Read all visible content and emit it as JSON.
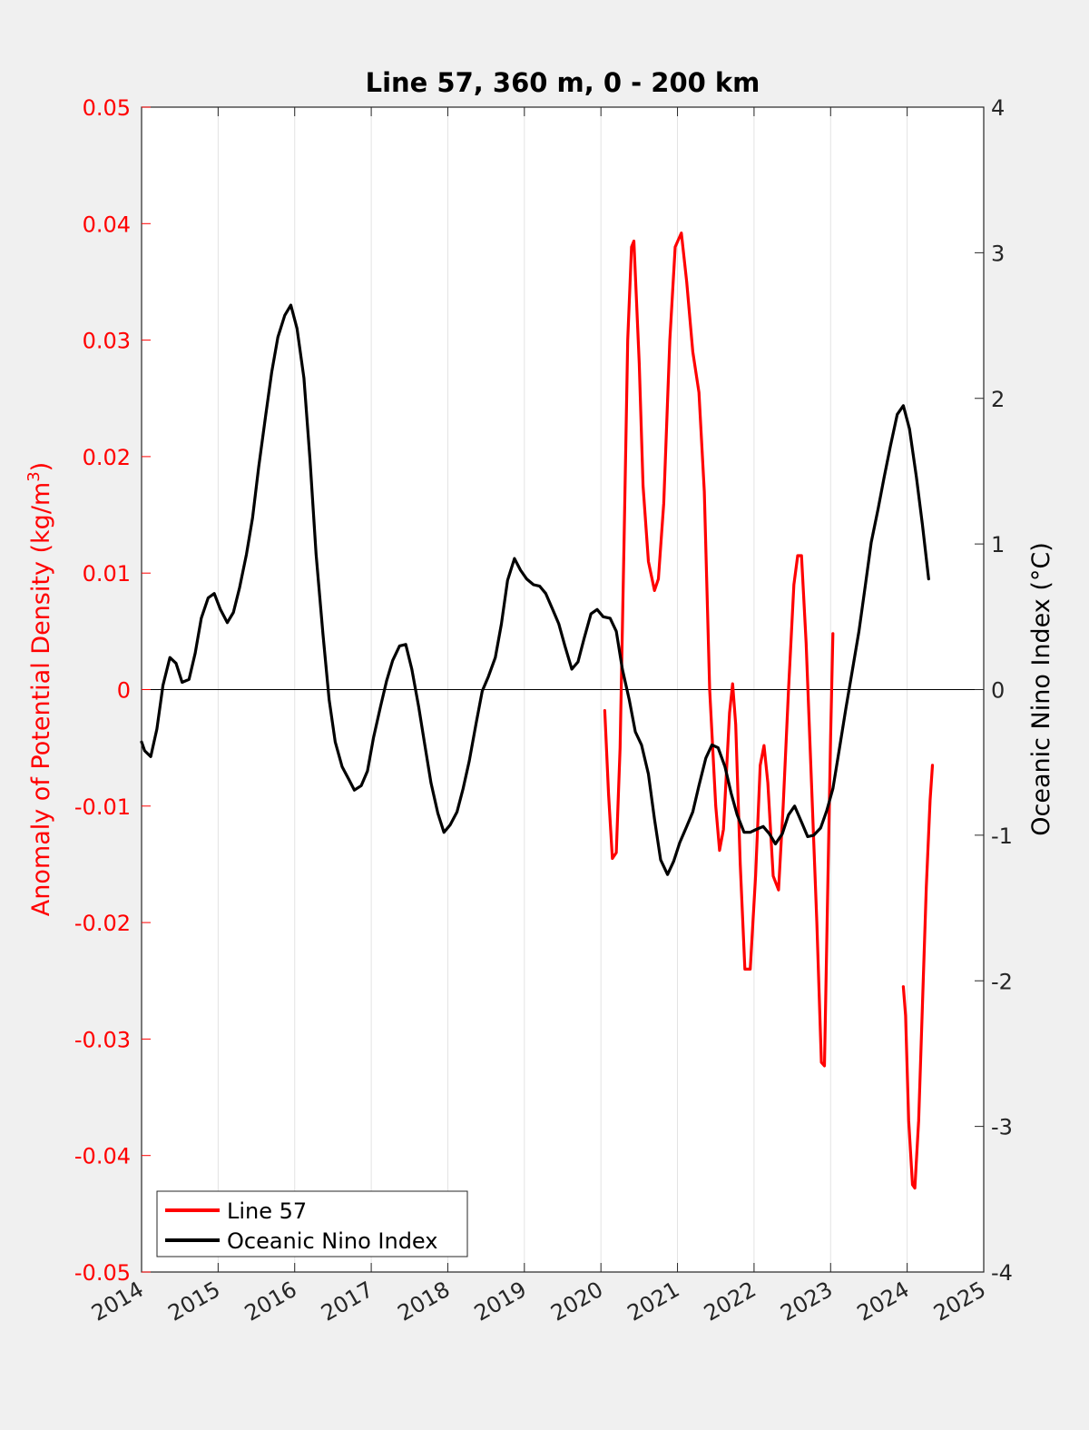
{
  "chart_data": {
    "type": "line",
    "title": "Line 57, 360 m, 0 - 200 km",
    "xlabel": "",
    "ylabel_left": "Anomaly of Potential Density (kg/m",
    "ylabel_left_sup": "3",
    "ylabel_left_close": ")",
    "ylabel_right": "Oceanic Nino Index (°C)",
    "xlim": [
      2014,
      2025
    ],
    "ylim_left": [
      -0.05,
      0.05
    ],
    "ylim_right": [
      -4,
      4
    ],
    "x_ticks": [
      "2014",
      "2015",
      "2016",
      "2017",
      "2018",
      "2019",
      "2020",
      "2021",
      "2022",
      "2023",
      "2024",
      "2025"
    ],
    "y_left_ticks": [
      "-0.05",
      "-0.04",
      "-0.03",
      "-0.02",
      "-0.01",
      "0",
      "0.01",
      "0.02",
      "0.03",
      "0.04",
      "0.05"
    ],
    "y_right_ticks": [
      "-4",
      "-3",
      "-2",
      "-1",
      "0",
      "1",
      "2",
      "3",
      "4"
    ],
    "grid": "vertical",
    "legend_position": "bottom-left",
    "colors": {
      "line57": "#ff0000",
      "oni": "#000000",
      "left_axis": "#ff0000",
      "right_axis": "#000000"
    },
    "series": [
      {
        "name": "Line 57",
        "axis": "left",
        "color": "#ff0000",
        "segments": [
          [
            [
              2020.05,
              -0.0018
            ],
            [
              2020.1,
              -0.009
            ],
            [
              2020.15,
              -0.0145
            ],
            [
              2020.2,
              -0.014
            ],
            [
              2020.25,
              -0.005
            ],
            [
              2020.3,
              0.012
            ],
            [
              2020.35,
              0.03
            ],
            [
              2020.4,
              0.038
            ],
            [
              2020.43,
              0.0385
            ],
            [
              2020.5,
              0.028
            ],
            [
              2020.55,
              0.0175
            ],
            [
              2020.62,
              0.011
            ],
            [
              2020.7,
              0.0085
            ],
            [
              2020.75,
              0.0095
            ],
            [
              2020.82,
              0.016
            ],
            [
              2020.9,
              0.03
            ],
            [
              2020.97,
              0.038
            ],
            [
              2021.05,
              0.0392
            ],
            [
              2021.12,
              0.035
            ],
            [
              2021.2,
              0.029
            ],
            [
              2021.28,
              0.0255
            ],
            [
              2021.35,
              0.017
            ],
            [
              2021.42,
              0.0
            ],
            [
              2021.5,
              -0.01
            ],
            [
              2021.55,
              -0.0138
            ],
            [
              2021.6,
              -0.012
            ],
            [
              2021.68,
              -0.002
            ],
            [
              2021.72,
              0.0005
            ],
            [
              2021.76,
              -0.003
            ],
            [
              2021.82,
              -0.015
            ],
            [
              2021.88,
              -0.024
            ],
            [
              2021.95,
              -0.024
            ],
            [
              2022.02,
              -0.016
            ],
            [
              2022.08,
              -0.0065
            ],
            [
              2022.13,
              -0.0048
            ],
            [
              2022.18,
              -0.008
            ],
            [
              2022.25,
              -0.016
            ],
            [
              2022.32,
              -0.0172
            ],
            [
              2022.38,
              -0.01
            ],
            [
              2022.45,
              0.0
            ],
            [
              2022.52,
              0.009
            ],
            [
              2022.57,
              0.0115
            ],
            [
              2022.62,
              0.0115
            ],
            [
              2022.68,
              0.004
            ],
            [
              2022.75,
              -0.008
            ],
            [
              2022.82,
              -0.02
            ],
            [
              2022.88,
              -0.032
            ],
            [
              2022.92,
              -0.0323
            ],
            [
              2022.96,
              -0.018
            ],
            [
              2023.0,
              -0.004
            ],
            [
              2023.03,
              0.0048
            ]
          ],
          [
            [
              2023.95,
              -0.0255
            ],
            [
              2023.98,
              -0.028
            ],
            [
              2024.02,
              -0.037
            ],
            [
              2024.07,
              -0.0425
            ],
            [
              2024.1,
              -0.0428
            ],
            [
              2024.15,
              -0.037
            ],
            [
              2024.2,
              -0.027
            ],
            [
              2024.25,
              -0.017
            ],
            [
              2024.3,
              -0.0095
            ],
            [
              2024.33,
              -0.0065
            ]
          ]
        ]
      },
      {
        "name": "Oceanic Nino Index",
        "axis": "right",
        "color": "#000000",
        "segments": [
          [
            [
              2014.0,
              -0.36
            ],
            [
              2014.04,
              -0.42
            ],
            [
              2014.12,
              -0.46
            ],
            [
              2014.2,
              -0.27
            ],
            [
              2014.28,
              0.03
            ],
            [
              2014.37,
              0.22
            ],
            [
              2014.45,
              0.18
            ],
            [
              2014.53,
              0.05
            ],
            [
              2014.62,
              0.07
            ],
            [
              2014.7,
              0.25
            ],
            [
              2014.78,
              0.49
            ],
            [
              2014.87,
              0.63
            ],
            [
              2014.95,
              0.66
            ],
            [
              2015.03,
              0.55
            ],
            [
              2015.12,
              0.46
            ],
            [
              2015.2,
              0.53
            ],
            [
              2015.28,
              0.7
            ],
            [
              2015.37,
              0.93
            ],
            [
              2015.45,
              1.18
            ],
            [
              2015.53,
              1.53
            ],
            [
              2015.62,
              1.88
            ],
            [
              2015.7,
              2.18
            ],
            [
              2015.78,
              2.42
            ],
            [
              2015.87,
              2.57
            ],
            [
              2015.95,
              2.64
            ],
            [
              2016.03,
              2.48
            ],
            [
              2016.12,
              2.14
            ],
            [
              2016.2,
              1.58
            ],
            [
              2016.28,
              0.93
            ],
            [
              2016.37,
              0.38
            ],
            [
              2016.45,
              -0.07
            ],
            [
              2016.53,
              -0.36
            ],
            [
              2016.62,
              -0.53
            ],
            [
              2016.7,
              -0.61
            ],
            [
              2016.78,
              -0.69
            ],
            [
              2016.87,
              -0.66
            ],
            [
              2016.95,
              -0.56
            ],
            [
              2017.03,
              -0.33
            ],
            [
              2017.12,
              -0.12
            ],
            [
              2017.2,
              0.06
            ],
            [
              2017.28,
              0.2
            ],
            [
              2017.37,
              0.3
            ],
            [
              2017.45,
              0.31
            ],
            [
              2017.53,
              0.14
            ],
            [
              2017.62,
              -0.12
            ],
            [
              2017.7,
              -0.38
            ],
            [
              2017.78,
              -0.64
            ],
            [
              2017.87,
              -0.85
            ],
            [
              2017.95,
              -0.98
            ],
            [
              2018.03,
              -0.93
            ],
            [
              2018.12,
              -0.84
            ],
            [
              2018.2,
              -0.68
            ],
            [
              2018.28,
              -0.49
            ],
            [
              2018.37,
              -0.23
            ],
            [
              2018.45,
              -0.01
            ],
            [
              2018.53,
              0.09
            ],
            [
              2018.62,
              0.22
            ],
            [
              2018.7,
              0.45
            ],
            [
              2018.78,
              0.75
            ],
            [
              2018.87,
              0.9
            ],
            [
              2018.95,
              0.82
            ],
            [
              2019.03,
              0.76
            ],
            [
              2019.12,
              0.72
            ],
            [
              2019.2,
              0.71
            ],
            [
              2019.28,
              0.66
            ],
            [
              2019.37,
              0.55
            ],
            [
              2019.45,
              0.45
            ],
            [
              2019.53,
              0.3
            ],
            [
              2019.62,
              0.14
            ],
            [
              2019.7,
              0.19
            ],
            [
              2019.78,
              0.35
            ],
            [
              2019.87,
              0.52
            ],
            [
              2019.95,
              0.55
            ],
            [
              2020.03,
              0.5
            ],
            [
              2020.12,
              0.49
            ],
            [
              2020.2,
              0.4
            ],
            [
              2020.28,
              0.14
            ],
            [
              2020.37,
              -0.07
            ],
            [
              2020.45,
              -0.29
            ],
            [
              2020.53,
              -0.38
            ],
            [
              2020.62,
              -0.58
            ],
            [
              2020.7,
              -0.89
            ],
            [
              2020.78,
              -1.17
            ],
            [
              2020.87,
              -1.27
            ],
            [
              2020.95,
              -1.18
            ],
            [
              2021.03,
              -1.05
            ],
            [
              2021.12,
              -0.94
            ],
            [
              2021.2,
              -0.84
            ],
            [
              2021.28,
              -0.66
            ],
            [
              2021.37,
              -0.47
            ],
            [
              2021.45,
              -0.38
            ],
            [
              2021.53,
              -0.4
            ],
            [
              2021.62,
              -0.53
            ],
            [
              2021.7,
              -0.71
            ],
            [
              2021.78,
              -0.86
            ],
            [
              2021.87,
              -0.98
            ],
            [
              2021.95,
              -0.98
            ],
            [
              2022.03,
              -0.96
            ],
            [
              2022.12,
              -0.94
            ],
            [
              2022.2,
              -0.99
            ],
            [
              2022.28,
              -1.06
            ],
            [
              2022.37,
              -0.99
            ],
            [
              2022.45,
              -0.86
            ],
            [
              2022.53,
              -0.8
            ],
            [
              2022.62,
              -0.91
            ],
            [
              2022.7,
              -1.01
            ],
            [
              2022.78,
              -1.0
            ],
            [
              2022.87,
              -0.95
            ],
            [
              2022.95,
              -0.83
            ],
            [
              2023.03,
              -0.68
            ],
            [
              2023.12,
              -0.39
            ],
            [
              2023.2,
              -0.13
            ],
            [
              2023.28,
              0.12
            ],
            [
              2023.37,
              0.4
            ],
            [
              2023.45,
              0.7
            ],
            [
              2023.53,
              1.01
            ],
            [
              2023.62,
              1.24
            ],
            [
              2023.7,
              1.46
            ],
            [
              2023.78,
              1.67
            ],
            [
              2023.87,
              1.89
            ],
            [
              2023.95,
              1.95
            ],
            [
              2024.03,
              1.79
            ],
            [
              2024.12,
              1.46
            ],
            [
              2024.2,
              1.13
            ],
            [
              2024.28,
              0.76
            ]
          ]
        ]
      }
    ]
  }
}
